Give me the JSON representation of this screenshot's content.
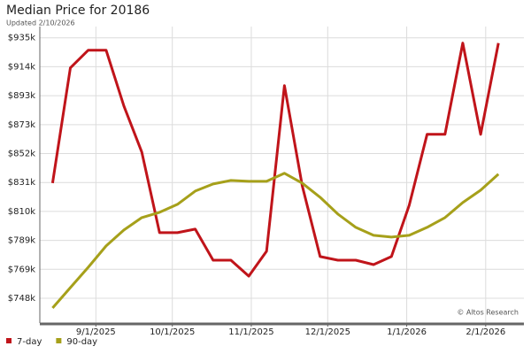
{
  "chart_data": {
    "type": "line",
    "title": "Median Price for 20186",
    "subtitle": "Updated 2/10/2026",
    "annotation": "© Altos Research",
    "x": [
      "2025-08-15",
      "2025-08-22",
      "2025-08-29",
      "2025-09-05",
      "2025-09-12",
      "2025-09-19",
      "2025-09-26",
      "2025-10-03",
      "2025-10-10",
      "2025-10-17",
      "2025-10-24",
      "2025-10-31",
      "2025-11-07",
      "2025-11-14",
      "2025-11-21",
      "2025-11-28",
      "2025-12-05",
      "2025-12-12",
      "2025-12-19",
      "2025-12-26",
      "2026-01-02",
      "2026-01-09",
      "2026-01-16",
      "2026-01-23",
      "2026-01-30",
      "2026-02-06"
    ],
    "series": [
      {
        "name": "7-day",
        "color": "#c0141a",
        "values": [
          830550,
          913300,
          926030,
          926030,
          885930,
          852830,
          794900,
          794900,
          797450,
          775170,
          775170,
          763710,
          781540,
          900570,
          828640,
          777720,
          775170,
          775170,
          771990,
          777720,
          814640,
          865560,
          865560,
          931120,
          865560,
          931120
        ]
      },
      {
        "name": "90-day",
        "color": "#a6a01a",
        "values": [
          740800,
          755440,
          770080,
          785360,
          796810,
          805720,
          809540,
          815270,
          824820,
          829910,
          832460,
          831820,
          831820,
          837550,
          830550,
          820370,
          808270,
          798720,
          792990,
          791720,
          792990,
          798720,
          805720,
          816550,
          825460,
          836920
        ]
      }
    ],
    "xlim": [
      "2025-08-10",
      "2026-02-16"
    ],
    "xticks": [
      {
        "value": "2025-09-01",
        "label": "9/1/2025"
      },
      {
        "value": "2025-10-01",
        "label": "10/1/2025"
      },
      {
        "value": "2025-11-01",
        "label": "11/1/2025"
      },
      {
        "value": "2025-12-01",
        "label": "12/1/2025"
      },
      {
        "value": "2026-01-01",
        "label": "1/1/2026"
      },
      {
        "value": "2026-02-01",
        "label": "2/1/2026"
      }
    ],
    "ylim": [
      730000,
      943000
    ],
    "yticks": [
      {
        "value": 747800,
        "label": "$748k"
      },
      {
        "value": 768590,
        "label": "$769k"
      },
      {
        "value": 789380,
        "label": "$789k"
      },
      {
        "value": 810170,
        "label": "$810k"
      },
      {
        "value": 830960,
        "label": "$831k"
      },
      {
        "value": 851750,
        "label": "$852k"
      },
      {
        "value": 872540,
        "label": "$873k"
      },
      {
        "value": 893330,
        "label": "$893k"
      },
      {
        "value": 914120,
        "label": "$914k"
      },
      {
        "value": 934910,
        "label": "$935k"
      }
    ],
    "grid": true,
    "legend": "bottom-left"
  }
}
